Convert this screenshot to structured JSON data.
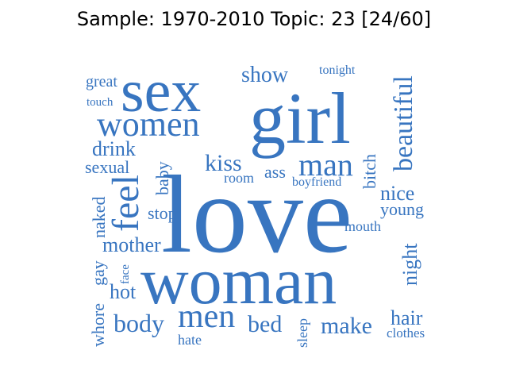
{
  "title": "Sample: 1970-2010 Topic: 23 [24/60]",
  "colors": {
    "word": "#3875c0",
    "background": "#ffffff",
    "title": "#000000"
  },
  "words": [
    {
      "text": "love"
    },
    {
      "text": "woman"
    },
    {
      "text": "girl"
    },
    {
      "text": "sex"
    },
    {
      "text": "women"
    },
    {
      "text": "men"
    },
    {
      "text": "man"
    },
    {
      "text": "feel"
    },
    {
      "text": "beautiful"
    },
    {
      "text": "body"
    },
    {
      "text": "show"
    },
    {
      "text": "kiss"
    },
    {
      "text": "make"
    },
    {
      "text": "bed"
    },
    {
      "text": "drink"
    },
    {
      "text": "mother"
    },
    {
      "text": "night"
    },
    {
      "text": "sexual"
    },
    {
      "text": "naked"
    },
    {
      "text": "baby"
    },
    {
      "text": "bitch"
    },
    {
      "text": "nice"
    },
    {
      "text": "great"
    },
    {
      "text": "hot"
    },
    {
      "text": "hair"
    },
    {
      "text": "whore"
    },
    {
      "text": "gay"
    },
    {
      "text": "stop"
    },
    {
      "text": "young"
    },
    {
      "text": "ass"
    },
    {
      "text": "room"
    },
    {
      "text": "mouth"
    },
    {
      "text": "tonight"
    },
    {
      "text": "boyfriend"
    },
    {
      "text": "sleep"
    },
    {
      "text": "touch"
    },
    {
      "text": "face"
    },
    {
      "text": "hate"
    },
    {
      "text": "clothes"
    }
  ]
}
